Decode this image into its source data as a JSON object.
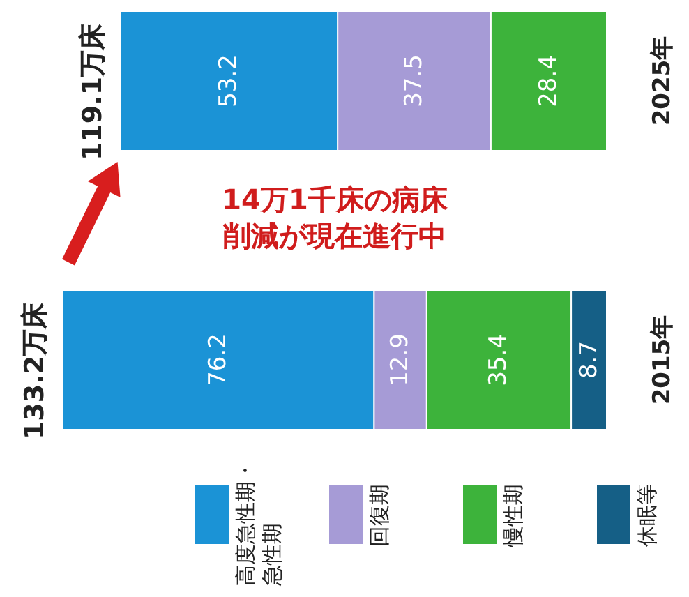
{
  "chart_data": {
    "type": "bar",
    "stacked": true,
    "orientation": "horizontal",
    "categories": [
      "2025年",
      "2015年"
    ],
    "series": [
      {
        "name": "休眠等",
        "color": "#155f86",
        "values": [
          null,
          8.7
        ]
      },
      {
        "name": "慢性期",
        "color": "#3db33b",
        "values": [
          28.4,
          35.4
        ]
      },
      {
        "name": "回復期",
        "color": "#a69bd6",
        "values": [
          37.5,
          12.9
        ]
      },
      {
        "name": "高度急性期・急性期",
        "color": "#1b93d6",
        "values": [
          53.2,
          76.2
        ]
      }
    ],
    "data_labels": true,
    "totals": [
      "119.1万床",
      "133.2万床"
    ],
    "annotations": [
      "14万1千床の病床削減が現在進行中"
    ],
    "legend": "bottom"
  }
}
